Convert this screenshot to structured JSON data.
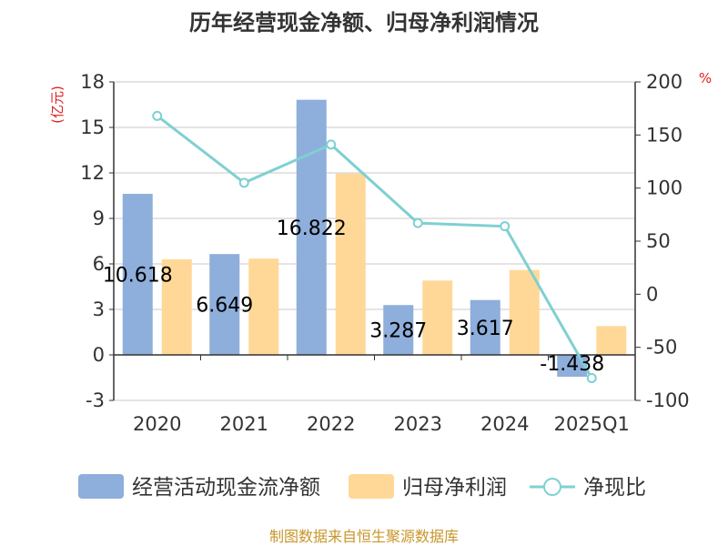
{
  "title": "历年经营现金净额、归母净利润情况",
  "source": "制图数据来自恒生聚源数据库",
  "colors": {
    "cash": "#8eaedb",
    "profit": "#ffd898",
    "ratio": "#7fd0d2",
    "unit": "#e02020",
    "source": "#c8962a"
  },
  "chart_data": {
    "type": "bar+line",
    "categories": [
      "2020",
      "2021",
      "2022",
      "2023",
      "2024",
      "2025Q1"
    ],
    "series": [
      {
        "name": "经营活动现金流净额",
        "axis": "left",
        "values": [
          10.618,
          6.649,
          16.822,
          3.287,
          3.617,
          -1.438
        ],
        "labels": [
          "10.618",
          "6.649",
          "16.822",
          "3.287",
          "3.617",
          "-1.438"
        ]
      },
      {
        "name": "归母净利润",
        "axis": "left",
        "values": [
          6.3,
          6.35,
          11.95,
          4.9,
          5.6,
          1.9
        ]
      },
      {
        "name": "净现比",
        "axis": "right",
        "type": "line",
        "values": [
          168,
          105,
          141,
          67,
          64,
          -79
        ]
      }
    ],
    "left_axis": {
      "unit": "(亿元)",
      "ylim": [
        -3,
        18
      ],
      "ticks": [
        "-3",
        "0",
        "3",
        "6",
        "9",
        "12",
        "15",
        "18"
      ]
    },
    "right_axis": {
      "unit": "%",
      "ylim": [
        -100,
        200
      ],
      "ticks": [
        "-100",
        "-50",
        "0",
        "50",
        "100",
        "150",
        "200"
      ]
    },
    "legend": "bottom"
  }
}
